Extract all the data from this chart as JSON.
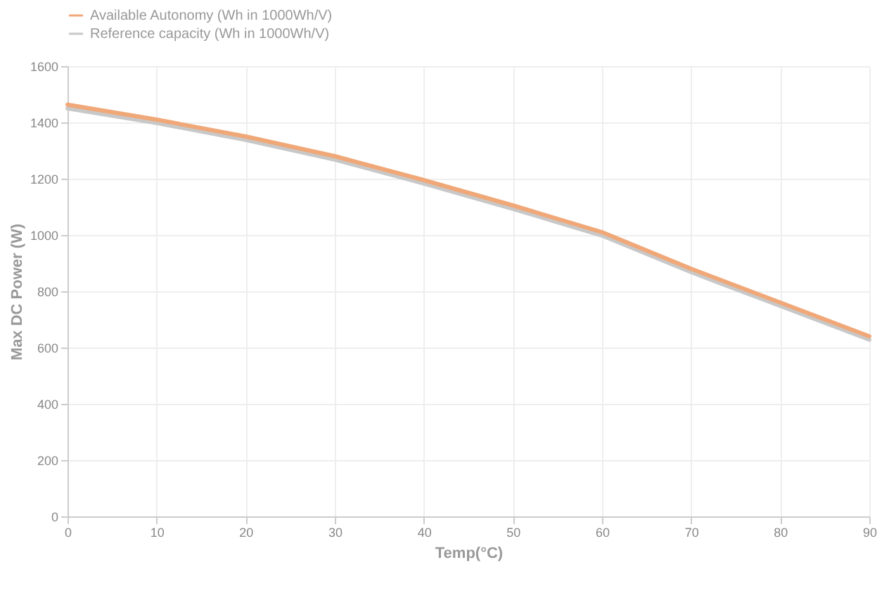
{
  "chart_data": {
    "type": "line",
    "xlabel": "Temp(°C)",
    "ylabel": "Max DC Power (W)",
    "x": [
      0,
      10,
      20,
      30,
      40,
      50,
      60,
      70,
      80,
      90
    ],
    "series": [
      {
        "name": "Available Autonomy (Wh in 1000Wh/V)",
        "color": "#f0a878",
        "values": [
          1463,
          1410,
          1350,
          1280,
          1195,
          1105,
          1010,
          880,
          760,
          640
        ]
      },
      {
        "name": "Reference capacity (Wh in 1000Wh/V)",
        "color": "#c8c8c8",
        "values": [
          1450,
          1398,
          1338,
          1268,
          1183,
          1093,
          998,
          868,
          748,
          628
        ]
      }
    ],
    "xlim": [
      0,
      90
    ],
    "xticks": [
      0,
      10,
      20,
      30,
      40,
      50,
      60,
      70,
      80,
      90
    ],
    "ylim": [
      0,
      1600
    ],
    "yticks": [
      0,
      200,
      400,
      600,
      800,
      1000,
      1200,
      1400,
      1600
    ],
    "grid": true,
    "legend": "top"
  }
}
